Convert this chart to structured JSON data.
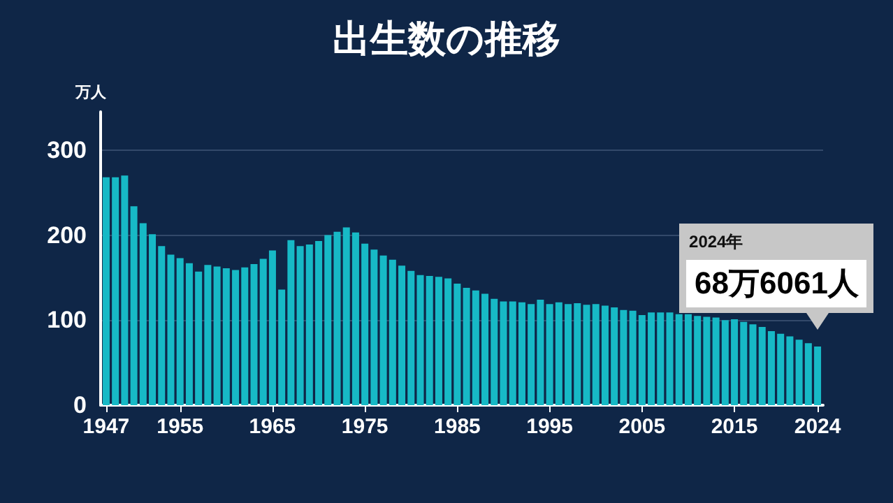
{
  "chart_data": {
    "type": "bar",
    "title": "出生数の推移",
    "ylabel": "万人",
    "x": [
      1947,
      1948,
      1949,
      1950,
      1951,
      1952,
      1953,
      1954,
      1955,
      1956,
      1957,
      1958,
      1959,
      1960,
      1961,
      1962,
      1963,
      1964,
      1965,
      1966,
      1967,
      1968,
      1969,
      1970,
      1971,
      1972,
      1973,
      1974,
      1975,
      1976,
      1977,
      1978,
      1979,
      1980,
      1981,
      1982,
      1983,
      1984,
      1985,
      1986,
      1987,
      1988,
      1989,
      1990,
      1991,
      1992,
      1993,
      1994,
      1995,
      1996,
      1997,
      1998,
      1999,
      2000,
      2001,
      2002,
      2003,
      2004,
      2005,
      2006,
      2007,
      2008,
      2009,
      2010,
      2011,
      2012,
      2013,
      2014,
      2015,
      2016,
      2017,
      2018,
      2019,
      2020,
      2021,
      2022,
      2023,
      2024
    ],
    "values": [
      268,
      268,
      270,
      234,
      214,
      201,
      187,
      177,
      173,
      167,
      157,
      165,
      163,
      161,
      159,
      162,
      166,
      172,
      182,
      136,
      194,
      187,
      189,
      193,
      200,
      204,
      209,
      203,
      190,
      183,
      176,
      171,
      164,
      158,
      153,
      152,
      151,
      149,
      143,
      138,
      135,
      131,
      125,
      122,
      122,
      121,
      119,
      124,
      119,
      121,
      119,
      120,
      118,
      119,
      117,
      115,
      112,
      111,
      106,
      109,
      109,
      109,
      107,
      107,
      105,
      104,
      103,
      100,
      101,
      98,
      95,
      92,
      87,
      84,
      81,
      77,
      73,
      69
    ],
    "color": "#17b9c6",
    "xlim": [
      1946.4,
      2024.6
    ],
    "xticks": [
      1947,
      1955,
      1965,
      1975,
      1985,
      1995,
      2005,
      2015,
      2024
    ],
    "ylim": [
      0,
      345
    ],
    "yticks": [
      0,
      100,
      200,
      300
    ],
    "grid": "y",
    "annotations": [
      "2024年",
      "68万6061人"
    ]
  }
}
